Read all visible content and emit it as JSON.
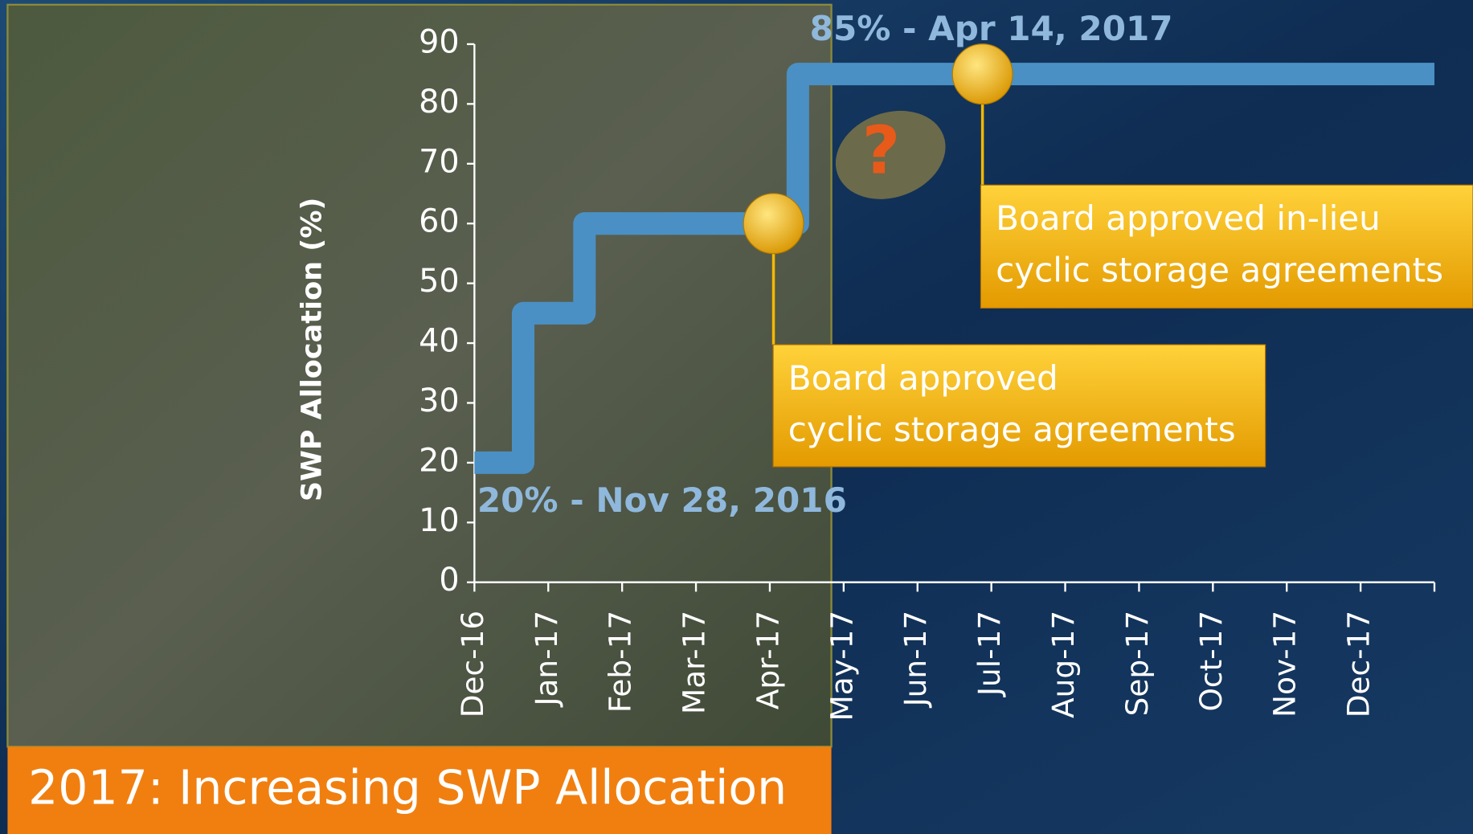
{
  "chart_data": {
    "type": "line",
    "title": "2017: Increasing SWP Allocation",
    "y_label": "SWP Allocation (%)",
    "xlim": [
      0,
      13
    ],
    "xticks": [
      {
        "value": 0,
        "label": "Dec-16"
      },
      {
        "value": 1,
        "label": "Jan-17"
      },
      {
        "value": 2,
        "label": "Feb-17"
      },
      {
        "value": 3,
        "label": "Mar-17"
      },
      {
        "value": 4,
        "label": "Apr-17"
      },
      {
        "value": 5,
        "label": "May-17"
      },
      {
        "value": 6,
        "label": "Jun-17"
      },
      {
        "value": 7,
        "label": "Jul-17"
      },
      {
        "value": 8,
        "label": "Aug-17"
      },
      {
        "value": 9,
        "label": "Sep-17"
      },
      {
        "value": 10,
        "label": "Oct-17"
      },
      {
        "value": 11,
        "label": "Nov-17"
      },
      {
        "value": 12,
        "label": "Dec-17"
      }
    ],
    "ylim": [
      0,
      90
    ],
    "yticks": [
      0,
      10,
      20,
      30,
      40,
      50,
      60,
      70,
      80,
      90
    ],
    "series": [
      {
        "color": "#4a90c4",
        "x": [
          0,
          0.66,
          0.66,
          1.49,
          1.49,
          4.38,
          4.38,
          13
        ],
        "values": [
          20,
          20,
          45,
          45,
          60,
          60,
          85,
          85
        ]
      }
    ],
    "markers": {
      "color": "#f5b800",
      "x": [
        4.05,
        6.88
      ],
      "values": [
        60,
        85
      ]
    },
    "annotations": [
      "85% - Apr 14, 2017",
      "20% - Nov 28, 2016"
    ],
    "callouts": [
      {
        "lines": [
          "Board approved",
          "cyclic storage agreements"
        ]
      },
      {
        "lines": [
          "Board approved in-lieu",
          "cyclic storage agreements"
        ]
      }
    ],
    "icon_text": "?"
  }
}
